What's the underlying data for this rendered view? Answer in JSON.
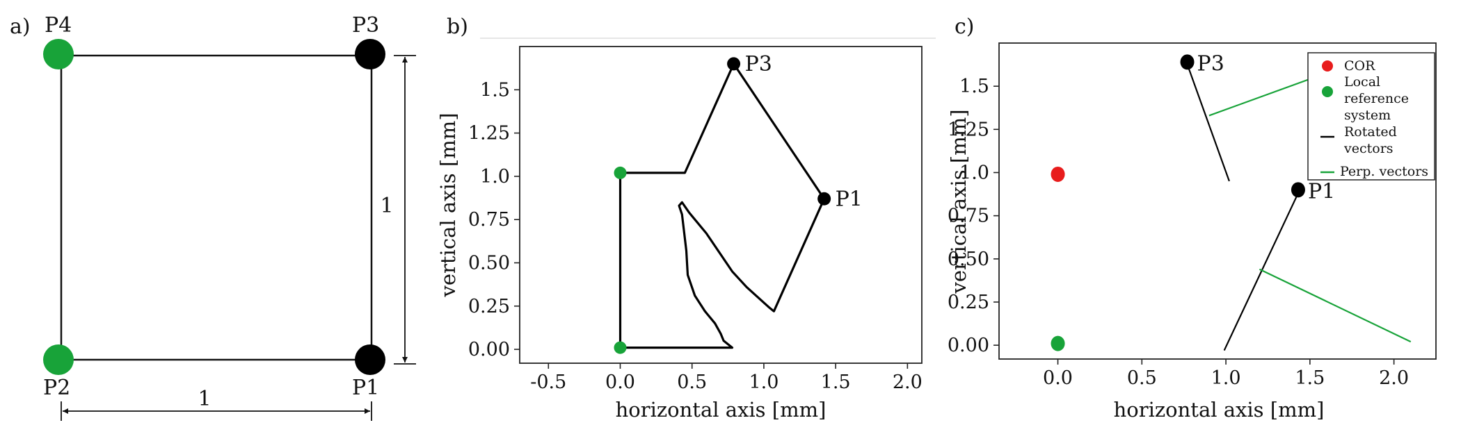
{
  "panels": {
    "a": {
      "label": "a)",
      "points": [
        {
          "id": "P4",
          "label": "P4",
          "color": "#18a339"
        },
        {
          "id": "P3",
          "label": "P3",
          "color": "#000000"
        },
        {
          "id": "P2",
          "label": "P2",
          "color": "#18a339"
        },
        {
          "id": "P1",
          "label": "P1",
          "color": "#000000"
        }
      ],
      "dim_width": "1",
      "dim_height": "1"
    },
    "b": {
      "label": "b)",
      "xlabel": "horizontal axis [mm]",
      "ylabel": "vertical axis [mm]",
      "x_ticks": [
        "-0.5",
        "0.0",
        "0.5",
        "1.0",
        "1.5",
        "2.0"
      ],
      "y_ticks": [
        "0.00",
        "0.25",
        "0.50",
        "0.75",
        "1.0",
        "1.25",
        "1.5"
      ],
      "point_labels": [
        "P3",
        "P1"
      ]
    },
    "c": {
      "label": "c)",
      "xlabel": "horizontal axis [mm]",
      "ylabel": "vertical axis [mm]",
      "x_ticks": [
        "0.0",
        "0.5",
        "1.0",
        "1.5",
        "2.0"
      ],
      "y_ticks": [
        "0.00",
        "0.25",
        "0.50",
        "0.75",
        "1.0",
        "1.25",
        "1.5"
      ],
      "point_labels": [
        "P3",
        "P1"
      ],
      "legend": [
        {
          "label": "COR",
          "kind": "dot",
          "color": "#e81c1c"
        },
        {
          "label": "Local reference system",
          "lines": [
            "Local",
            "reference",
            "system"
          ],
          "kind": "dot",
          "color": "#18a339"
        },
        {
          "label": "Rotated vectors",
          "lines": [
            "Rotated",
            "vectors"
          ],
          "kind": "line",
          "color": "#000000"
        },
        {
          "label": "Perp. vectors",
          "lines": [
            "Perp. vectors"
          ],
          "kind": "line",
          "color": "#18a339"
        }
      ]
    }
  },
  "chart_data": [
    {
      "type": "line",
      "panel": "b",
      "xlabel": "horizontal axis [mm]",
      "ylabel": "vertical axis [mm]",
      "xlim": [
        -0.7,
        2.1
      ],
      "ylim": [
        -0.08,
        1.75
      ],
      "x_ticks": [
        -0.5,
        0.0,
        0.5,
        1.0,
        1.5,
        2.0
      ],
      "y_ticks": [
        0.0,
        0.25,
        0.5,
        0.75,
        1.0,
        1.25,
        1.5
      ],
      "series": [
        {
          "kind": "polyline",
          "color": "#000000",
          "x": [
            0.0,
            0.0,
            0.45,
            0.79,
            1.42,
            1.07,
            1.04,
            0.88,
            0.78,
            0.6,
            0.48,
            0.43,
            0.41,
            0.43,
            0.46,
            0.47,
            0.52,
            0.59,
            0.66,
            0.7,
            0.72,
            0.78,
            0.4,
            0.0
          ],
          "y": [
            0.0,
            1.02,
            1.02,
            1.65,
            0.87,
            0.22,
            0.24,
            0.36,
            0.45,
            0.67,
            0.79,
            0.85,
            0.83,
            0.78,
            0.57,
            0.43,
            0.31,
            0.22,
            0.15,
            0.09,
            0.05,
            0.01,
            0.01,
            0.01
          ]
        }
      ],
      "markers": [
        {
          "label": "P3",
          "x": 0.79,
          "y": 1.65,
          "color": "#000000"
        },
        {
          "label": "P1",
          "x": 1.42,
          "y": 0.87,
          "color": "#000000"
        },
        {
          "x": 0.0,
          "y": 1.02,
          "color": "#18a339"
        },
        {
          "x": 0.0,
          "y": 0.01,
          "color": "#18a339"
        }
      ]
    },
    {
      "type": "scatter",
      "panel": "c",
      "xlabel": "horizontal axis [mm]",
      "ylabel": "vertical axis [mm]",
      "xlim": [
        -0.35,
        2.25
      ],
      "ylim": [
        -0.08,
        1.75
      ],
      "x_ticks": [
        0.0,
        0.5,
        1.0,
        1.5,
        2.0
      ],
      "y_ticks": [
        0.0,
        0.25,
        0.5,
        0.75,
        1.0,
        1.25,
        1.5
      ],
      "markers": [
        {
          "label": "P3",
          "x": 0.77,
          "y": 1.64,
          "color": "#000000"
        },
        {
          "label": "P1",
          "x": 1.43,
          "y": 0.9,
          "color": "#000000"
        },
        {
          "series": "COR",
          "x": 0.0,
          "y": 0.99,
          "color": "#e81c1c"
        },
        {
          "series": "Local reference system",
          "x": 0.0,
          "y": 0.01,
          "color": "#18a339"
        }
      ],
      "segments": [
        {
          "series": "Rotated vectors",
          "color": "#000000",
          "x": [
            0.78,
            1.02
          ],
          "y": [
            1.6,
            0.95
          ]
        },
        {
          "series": "Rotated vectors",
          "color": "#000000",
          "x": [
            1.42,
            0.99
          ],
          "y": [
            0.86,
            -0.03
          ]
        },
        {
          "series": "Perp. vectors",
          "color": "#18a339",
          "x": [
            0.9,
            1.58
          ],
          "y": [
            1.33,
            1.57
          ]
        },
        {
          "series": "Perp. vectors",
          "color": "#18a339",
          "x": [
            1.2,
            2.1
          ],
          "y": [
            0.44,
            0.02
          ]
        }
      ]
    }
  ]
}
